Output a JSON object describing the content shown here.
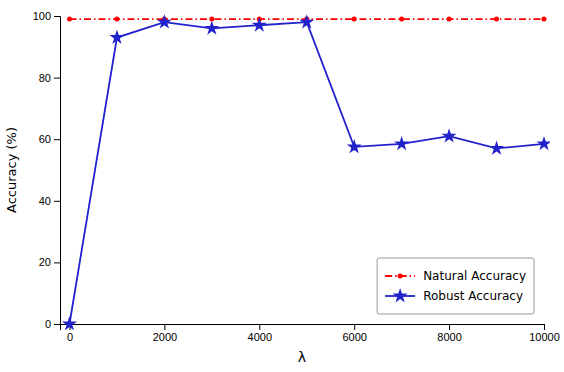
{
  "chart_data": {
    "type": "line",
    "x": [
      0,
      1000,
      2000,
      3000,
      4000,
      5000,
      6000,
      7000,
      8000,
      9000,
      10000
    ],
    "xlabel": "λ",
    "ylabel": "Accuracy (%)",
    "xlim": [
      -200,
      10000
    ],
    "ylim": [
      0,
      100
    ],
    "xticks": [
      0,
      2000,
      4000,
      6000,
      8000,
      10000
    ],
    "yticks": [
      0,
      20,
      40,
      60,
      80,
      100
    ],
    "legend": "lower right",
    "series": [
      {
        "name": "Natural Accuracy",
        "color": "#ff0000",
        "marker": "dot",
        "line_style": "dash-dot",
        "values": [
          99,
          99,
          99,
          99,
          99,
          99,
          99,
          99,
          99,
          99,
          99
        ]
      },
      {
        "name": "Robust Accuracy",
        "color": "#2222cc",
        "marker": "star",
        "line_style": "solid",
        "values": [
          0,
          93,
          98,
          96,
          97,
          98,
          57.5,
          58.5,
          61,
          57,
          58.5
        ]
      }
    ]
  }
}
